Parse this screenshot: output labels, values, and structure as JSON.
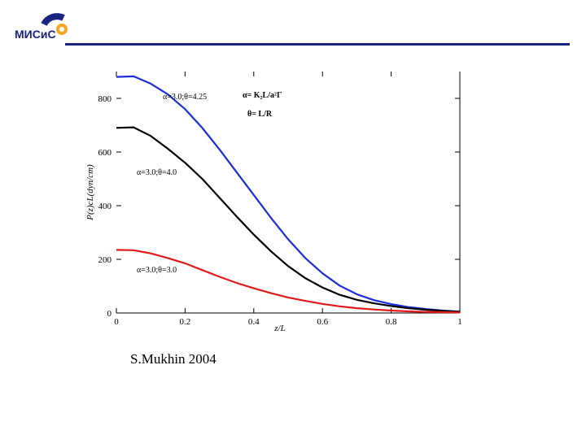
{
  "header": {
    "logo_text": "МИСиС",
    "colors": {
      "rule": "#1a237e",
      "logo_blue": "#1a237e",
      "logo_orange": "#f5a623"
    }
  },
  "footer": {
    "credit": "S.Mukhin 2004"
  },
  "chart_data": {
    "type": "line",
    "xlabel": "z/L",
    "ylabel": "P(z)cL(dyn/cm)",
    "xlim": [
      0,
      1
    ],
    "ylim": [
      0,
      900
    ],
    "x_ticks": [
      "0",
      "0.2",
      "0.4",
      "0.6",
      "0.8",
      "1"
    ],
    "y_ticks": [
      "0",
      "200",
      "400",
      "600",
      "800"
    ],
    "grid": false,
    "legend_notes": [
      {
        "text": "α= Κ₂L/a²Γ"
      },
      {
        "text": "θ= L/R"
      }
    ],
    "series": [
      {
        "name": "α=3.0;θ=4.25",
        "color": "#1a2fd8",
        "x": [
          0,
          0.05,
          0.1,
          0.15,
          0.2,
          0.25,
          0.3,
          0.35,
          0.4,
          0.45,
          0.5,
          0.55,
          0.6,
          0.65,
          0.7,
          0.75,
          0.8,
          0.85,
          0.9,
          0.95,
          1.0
        ],
        "values": [
          880,
          882,
          855,
          815,
          760,
          690,
          610,
          525,
          440,
          355,
          275,
          205,
          148,
          102,
          70,
          48,
          33,
          22,
          15,
          9,
          5
        ]
      },
      {
        "name": "α=3.0;θ=4.0",
        "color": "#000000",
        "x": [
          0,
          0.05,
          0.1,
          0.15,
          0.2,
          0.25,
          0.3,
          0.35,
          0.4,
          0.45,
          0.5,
          0.55,
          0.6,
          0.65,
          0.7,
          0.75,
          0.8,
          0.85,
          0.9,
          0.95,
          1.0
        ],
        "values": [
          690,
          692,
          660,
          612,
          560,
          500,
          430,
          360,
          292,
          230,
          175,
          130,
          95,
          68,
          49,
          36,
          26,
          18,
          12,
          8,
          5
        ]
      },
      {
        "name": "α=3.0;θ=3.0",
        "color": "#e01a1a",
        "x": [
          0,
          0.05,
          0.1,
          0.15,
          0.2,
          0.25,
          0.3,
          0.35,
          0.4,
          0.45,
          0.5,
          0.55,
          0.6,
          0.65,
          0.7,
          0.75,
          0.8,
          0.85,
          0.9,
          0.95,
          1.0
        ],
        "values": [
          235,
          234,
          222,
          205,
          185,
          160,
          135,
          112,
          92,
          74,
          58,
          45,
          34,
          25,
          18,
          13,
          9,
          6,
          4,
          3,
          2
        ]
      }
    ]
  }
}
